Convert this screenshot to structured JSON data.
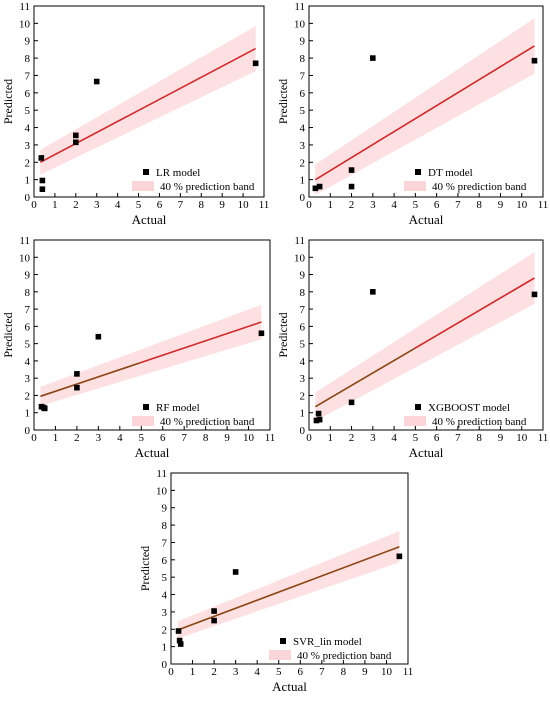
{
  "colors": {
    "band": "#fbd5d8",
    "line_red": "#d62728",
    "line_brown": "#8b4513",
    "marker": "#000000"
  },
  "chart_data": [
    {
      "type": "scatter",
      "name": "LR",
      "xlabel": "Actual",
      "ylabel": "Predicted",
      "xlim": [
        0,
        11
      ],
      "ylim": [
        0,
        11
      ],
      "xticks": [
        "0",
        "1",
        "2",
        "3",
        "4",
        "5",
        "6",
        "7",
        "8",
        "9",
        "10",
        "11"
      ],
      "yticks": [
        "0",
        "1",
        "2",
        "3",
        "4",
        "5",
        "6",
        "7",
        "8",
        "9",
        "10",
        "11"
      ],
      "points": [
        [
          0.35,
          2.25
        ],
        [
          0.4,
          0.95
        ],
        [
          0.4,
          0.45
        ],
        [
          2.0,
          3.55
        ],
        [
          2.0,
          3.15
        ],
        [
          3.0,
          6.65
        ],
        [
          10.6,
          7.7
        ]
      ],
      "fit": {
        "x": [
          0.3,
          10.6
        ],
        "y": [
          2.0,
          8.55
        ],
        "color": "#d62728"
      },
      "band_halfwidth": 1.3,
      "legend": {
        "marker_label": "LR model",
        "band_label": "40 % prediction band"
      }
    },
    {
      "type": "scatter",
      "name": "DT",
      "xlabel": "Actual",
      "ylabel": "Predicted",
      "xlim": [
        0,
        11
      ],
      "ylim": [
        0,
        11
      ],
      "xticks": [
        "0",
        "1",
        "2",
        "3",
        "4",
        "5",
        "6",
        "7",
        "8",
        "9",
        "10",
        "11"
      ],
      "yticks": [
        "0",
        "1",
        "2",
        "3",
        "4",
        "5",
        "6",
        "7",
        "8",
        "9",
        "10",
        "11"
      ],
      "points": [
        [
          0.3,
          0.5
        ],
        [
          0.5,
          0.6
        ],
        [
          2.0,
          1.55
        ],
        [
          2.0,
          0.6
        ],
        [
          3.0,
          8.0
        ],
        [
          10.6,
          7.85
        ]
      ],
      "fit": {
        "x": [
          0.3,
          10.6
        ],
        "y": [
          1.0,
          8.7
        ],
        "color": "#d62728"
      },
      "band_halfwidth": 1.6,
      "legend": {
        "marker_label": "DT model",
        "band_label": "40 % prediction band"
      }
    },
    {
      "type": "scatter",
      "name": "RF",
      "xlabel": "Actual",
      "ylabel": "Predicted",
      "xlim": [
        0,
        11
      ],
      "ylim": [
        0,
        11
      ],
      "xticks": [
        "0",
        "1",
        "2",
        "3",
        "4",
        "5",
        "6",
        "7",
        "8",
        "9",
        "10",
        "11"
      ],
      "yticks": [
        "0",
        "1",
        "2",
        "3",
        "4",
        "5",
        "6",
        "7",
        "8",
        "9",
        "10",
        "11"
      ],
      "points": [
        [
          0.35,
          1.35
        ],
        [
          0.45,
          1.3
        ],
        [
          0.5,
          1.25
        ],
        [
          2.0,
          3.25
        ],
        [
          2.0,
          2.45
        ],
        [
          3.0,
          5.4
        ],
        [
          10.6,
          5.6
        ]
      ],
      "fit": {
        "x": [
          0.3,
          10.6
        ],
        "y": [
          1.95,
          6.25
        ],
        "color": "#d62728",
        "color_start": "#8b4513"
      },
      "band_halfwidth": 1.0,
      "legend": {
        "marker_label": "RF model",
        "band_label": "40 % prediction band"
      }
    },
    {
      "type": "scatter",
      "name": "XGBOOST",
      "xlabel": "Actual",
      "ylabel": "Predicted",
      "xlim": [
        0,
        11
      ],
      "ylim": [
        0,
        11
      ],
      "xticks": [
        "0",
        "1",
        "2",
        "3",
        "4",
        "5",
        "6",
        "7",
        "8",
        "9",
        "10",
        "11"
      ],
      "yticks": [
        "0",
        "1",
        "2",
        "3",
        "4",
        "5",
        "6",
        "7",
        "8",
        "9",
        "10",
        "11"
      ],
      "points": [
        [
          0.35,
          0.55
        ],
        [
          0.45,
          0.95
        ],
        [
          0.5,
          0.6
        ],
        [
          2.0,
          1.6
        ],
        [
          3.0,
          8.0
        ],
        [
          10.6,
          7.85
        ]
      ],
      "fit": {
        "x": [
          0.3,
          10.6
        ],
        "y": [
          1.35,
          8.8
        ],
        "color": "#d62728",
        "color_start": "#8b4513"
      },
      "band_halfwidth": 1.5,
      "legend": {
        "marker_label": "XGBOOST model",
        "band_label": "40 % prediction band"
      }
    },
    {
      "type": "scatter",
      "name": "SVR_lin",
      "xlabel": "Actual",
      "ylabel": "Predicted",
      "xlim": [
        0,
        11
      ],
      "ylim": [
        0,
        11
      ],
      "xticks": [
        "0",
        "1",
        "2",
        "3",
        "4",
        "5",
        "6",
        "7",
        "8",
        "9",
        "10",
        "11"
      ],
      "yticks": [
        "0",
        "1",
        "2",
        "3",
        "4",
        "5",
        "6",
        "7",
        "8",
        "9",
        "10",
        "11"
      ],
      "points": [
        [
          0.35,
          1.9
        ],
        [
          0.4,
          1.35
        ],
        [
          0.45,
          1.15
        ],
        [
          2.0,
          3.05
        ],
        [
          2.0,
          2.5
        ],
        [
          3.0,
          5.3
        ],
        [
          10.6,
          6.2
        ]
      ],
      "fit": {
        "x": [
          0.3,
          10.6
        ],
        "y": [
          1.95,
          6.75
        ],
        "color": "#8b4513"
      },
      "band_halfwidth": 0.9,
      "legend": {
        "marker_label": "SVR_lin model",
        "band_label": "40 % prediction band"
      }
    }
  ]
}
